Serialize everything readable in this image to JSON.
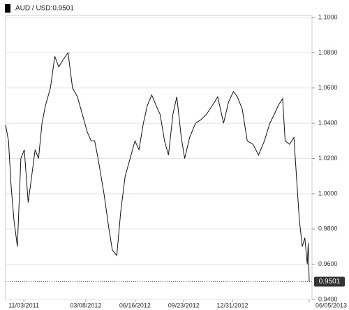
{
  "chart_data": {
    "type": "line",
    "title": "AUD / USD:0.9501",
    "x": [
      "09/27/2011",
      "10/03/2011",
      "10/08/2011",
      "10/14/2011",
      "10/21/2011",
      "10/28/2011",
      "11/04/2011",
      "11/12/2011",
      "11/19/2011",
      "11/26/2011",
      "12/03/2011",
      "12/10/2011",
      "12/17/2011",
      "12/27/2011",
      "01/05/2012",
      "01/13/2012",
      "01/22/2012",
      "02/01/2012",
      "02/10/2012",
      "02/20/2012",
      "03/01/2012",
      "03/11/2012",
      "03/19/2012",
      "03/26/2012",
      "04/02/2012",
      "04/14/2012",
      "04/24/2012",
      "05/01/2012",
      "05/10/2012",
      "05/18/2012",
      "05/27/2012",
      "06/06/2012",
      "06/16/2012",
      "06/24/2012",
      "07/03/2012",
      "07/11/2012",
      "07/20/2012",
      "07/29/2012",
      "08/06/2012",
      "08/15/2012",
      "08/23/2012",
      "09/01/2012",
      "09/09/2012",
      "09/18/2012",
      "09/25/2012",
      "10/05/2012",
      "10/17/2012",
      "10/28/2012",
      "11/08/2012",
      "11/20/2012",
      "12/01/2012",
      "12/13/2012",
      "12/23/2012",
      "01/02/2013",
      "01/10/2013",
      "01/20/2013",
      "01/30/2013",
      "02/11/2013",
      "02/22/2013",
      "03/06/2013",
      "03/17/2013",
      "03/26/2013",
      "04/03/2013",
      "04/12/2013",
      "04/17/2013",
      "04/26/2013",
      "05/05/2013",
      "05/10/2013",
      "05/16/2013",
      "05/22/2013",
      "05/27/2013",
      "06/01/2013",
      "06/03/2013",
      "06/05/2013"
    ],
    "series": [
      {
        "name": "AUD / USD",
        "color": "#111111",
        "values": [
          1.039,
          1.03,
          1.005,
          0.985,
          0.97,
          1.02,
          1.025,
          0.995,
          1.01,
          1.025,
          1.02,
          1.04,
          1.05,
          1.06,
          1.078,
          1.072,
          1.076,
          1.08,
          1.06,
          1.055,
          1.045,
          1.035,
          1.03,
          1.03,
          1.02,
          1.0,
          0.98,
          0.968,
          0.965,
          0.99,
          1.01,
          1.02,
          1.03,
          1.025,
          1.04,
          1.05,
          1.056,
          1.05,
          1.045,
          1.03,
          1.022,
          1.045,
          1.055,
          1.032,
          1.02,
          1.032,
          1.04,
          1.042,
          1.045,
          1.05,
          1.055,
          1.04,
          1.052,
          1.058,
          1.055,
          1.048,
          1.03,
          1.028,
          1.022,
          1.03,
          1.04,
          1.045,
          1.05,
          1.054,
          1.03,
          1.028,
          1.032,
          1.01,
          0.985,
          0.97,
          0.975,
          0.96,
          0.972,
          0.9501
        ]
      }
    ],
    "xlim": [
      "09/27/2011",
      "06/05/2013"
    ],
    "xticks": [
      "11/03/2011",
      "03/08/2012",
      "06/16/2012",
      "09/23/2012",
      "12/31/2012",
      "06/05/2013"
    ],
    "ylim": [
      0.94,
      1.1
    ],
    "yticks": [
      {
        "value": 0.94,
        "label": "0.9400"
      },
      {
        "value": 0.96,
        "label": "0.9600"
      },
      {
        "value": 0.98,
        "label": "0.9800"
      },
      {
        "value": 1.0,
        "label": "1.0000"
      },
      {
        "value": 1.02,
        "label": "1.0200"
      },
      {
        "value": 1.04,
        "label": "1.0400"
      },
      {
        "value": 1.06,
        "label": "1.0600"
      },
      {
        "value": 1.08,
        "label": "1.0800"
      },
      {
        "value": 1.1,
        "label": "1.1000"
      }
    ],
    "grid": true
  }
}
